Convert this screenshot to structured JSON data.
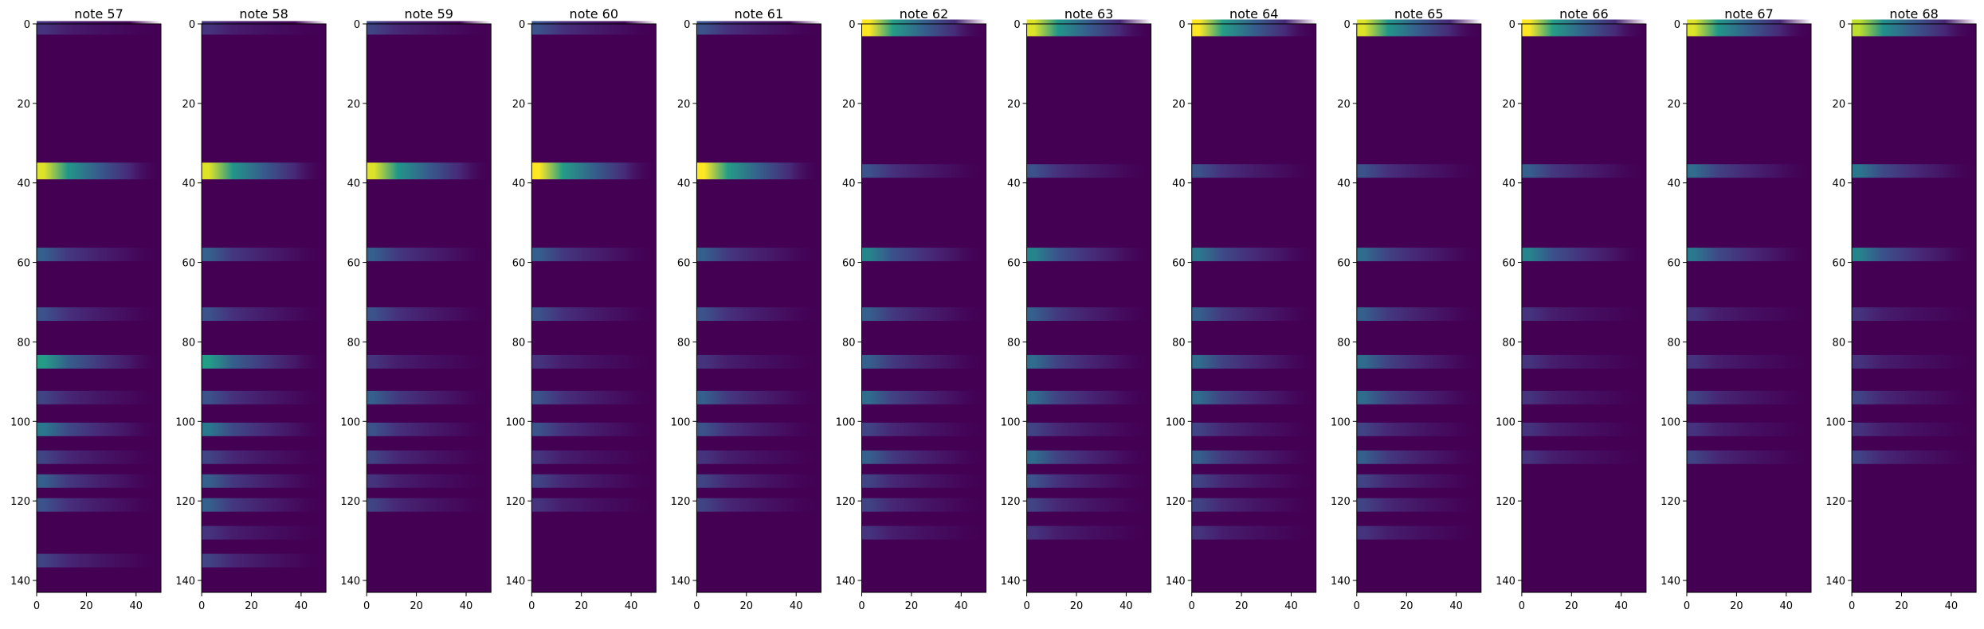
{
  "colors": {
    "background": "#440154",
    "colormap": [
      "#440154",
      "#472c7a",
      "#3b528b",
      "#2c728e",
      "#21918c",
      "#28ae80",
      "#5ec962",
      "#addc30",
      "#fde725"
    ]
  },
  "chart_data": [
    {
      "type": "heatmap",
      "title": "note 57",
      "xlim": [
        0,
        50
      ],
      "ylim": [
        143,
        0
      ],
      "xticks": [
        0,
        20,
        40
      ],
      "yticks": [
        0,
        20,
        40,
        60,
        80,
        100,
        120,
        140
      ],
      "bands": [
        {
          "y": 1,
          "v": 0.15
        },
        {
          "y": 37,
          "v": 0.95
        },
        {
          "y": 58,
          "v": 0.3
        },
        {
          "y": 73,
          "v": 0.25
        },
        {
          "y": 85,
          "v": 0.55
        },
        {
          "y": 94,
          "v": 0.2
        },
        {
          "y": 102,
          "v": 0.4
        },
        {
          "y": 109,
          "v": 0.2
        },
        {
          "y": 115,
          "v": 0.3
        },
        {
          "y": 121,
          "v": 0.25
        },
        {
          "y": 135,
          "v": 0.2
        }
      ]
    },
    {
      "type": "heatmap",
      "title": "note 58",
      "xlim": [
        0,
        50
      ],
      "ylim": [
        143,
        0
      ],
      "xticks": [
        0,
        20,
        40
      ],
      "yticks": [
        0,
        20,
        40,
        60,
        80,
        100,
        120,
        140
      ],
      "bands": [
        {
          "y": 1,
          "v": 0.15
        },
        {
          "y": 37,
          "v": 0.95
        },
        {
          "y": 58,
          "v": 0.3
        },
        {
          "y": 73,
          "v": 0.25
        },
        {
          "y": 85,
          "v": 0.55
        },
        {
          "y": 94,
          "v": 0.25
        },
        {
          "y": 102,
          "v": 0.4
        },
        {
          "y": 109,
          "v": 0.2
        },
        {
          "y": 115,
          "v": 0.3
        },
        {
          "y": 121,
          "v": 0.3
        },
        {
          "y": 128,
          "v": 0.15
        },
        {
          "y": 135,
          "v": 0.2
        }
      ]
    },
    {
      "type": "heatmap",
      "title": "note 59",
      "xlim": [
        0,
        50
      ],
      "ylim": [
        143,
        0
      ],
      "xticks": [
        0,
        20,
        40
      ],
      "yticks": [
        0,
        20,
        40,
        60,
        80,
        100,
        120,
        140
      ],
      "bands": [
        {
          "y": 1,
          "v": 0.2
        },
        {
          "y": 37,
          "v": 0.95
        },
        {
          "y": 58,
          "v": 0.3
        },
        {
          "y": 73,
          "v": 0.25
        },
        {
          "y": 85,
          "v": 0.15
        },
        {
          "y": 94,
          "v": 0.3
        },
        {
          "y": 102,
          "v": 0.25
        },
        {
          "y": 109,
          "v": 0.2
        },
        {
          "y": 115,
          "v": 0.15
        },
        {
          "y": 121,
          "v": 0.2
        }
      ]
    },
    {
      "type": "heatmap",
      "title": "note 60",
      "xlim": [
        0,
        50
      ],
      "ylim": [
        143,
        0
      ],
      "xticks": [
        0,
        20,
        40
      ],
      "yticks": [
        0,
        20,
        40,
        60,
        80,
        100,
        120,
        140
      ],
      "bands": [
        {
          "y": 1,
          "v": 0.25
        },
        {
          "y": 37,
          "v": 1.0
        },
        {
          "y": 58,
          "v": 0.3
        },
        {
          "y": 73,
          "v": 0.25
        },
        {
          "y": 85,
          "v": 0.15
        },
        {
          "y": 94,
          "v": 0.25
        },
        {
          "y": 102,
          "v": 0.25
        },
        {
          "y": 109,
          "v": 0.15
        },
        {
          "y": 115,
          "v": 0.2
        },
        {
          "y": 121,
          "v": 0.15
        }
      ]
    },
    {
      "type": "heatmap",
      "title": "note 61",
      "xlim": [
        0,
        50
      ],
      "ylim": [
        143,
        0
      ],
      "xticks": [
        0,
        20,
        40
      ],
      "yticks": [
        0,
        20,
        40,
        60,
        80,
        100,
        120,
        140
      ],
      "bands": [
        {
          "y": 1,
          "v": 0.25
        },
        {
          "y": 37,
          "v": 1.0
        },
        {
          "y": 58,
          "v": 0.3
        },
        {
          "y": 73,
          "v": 0.25
        },
        {
          "y": 85,
          "v": 0.15
        },
        {
          "y": 94,
          "v": 0.3
        },
        {
          "y": 102,
          "v": 0.25
        },
        {
          "y": 109,
          "v": 0.15
        },
        {
          "y": 115,
          "v": 0.2
        },
        {
          "y": 121,
          "v": 0.2
        }
      ]
    },
    {
      "type": "heatmap",
      "title": "note 62",
      "xlim": [
        0,
        50
      ],
      "ylim": [
        143,
        0
      ],
      "xticks": [
        0,
        20,
        40
      ],
      "yticks": [
        0,
        20,
        40,
        60,
        80,
        100,
        120,
        140
      ],
      "bands": [
        {
          "y": 1,
          "v": 1.0
        },
        {
          "y": 37,
          "v": 0.25
        },
        {
          "y": 58,
          "v": 0.45
        },
        {
          "y": 73,
          "v": 0.3
        },
        {
          "y": 85,
          "v": 0.3
        },
        {
          "y": 94,
          "v": 0.35
        },
        {
          "y": 102,
          "v": 0.2
        },
        {
          "y": 109,
          "v": 0.3
        },
        {
          "y": 115,
          "v": 0.2
        },
        {
          "y": 121,
          "v": 0.2
        },
        {
          "y": 128,
          "v": 0.15
        }
      ]
    },
    {
      "type": "heatmap",
      "title": "note 63",
      "xlim": [
        0,
        50
      ],
      "ylim": [
        143,
        0
      ],
      "xticks": [
        0,
        20,
        40
      ],
      "yticks": [
        0,
        20,
        40,
        60,
        80,
        100,
        120,
        140
      ],
      "bands": [
        {
          "y": 1,
          "v": 0.95
        },
        {
          "y": 37,
          "v": 0.25
        },
        {
          "y": 58,
          "v": 0.45
        },
        {
          "y": 73,
          "v": 0.3
        },
        {
          "y": 85,
          "v": 0.35
        },
        {
          "y": 94,
          "v": 0.35
        },
        {
          "y": 102,
          "v": 0.2
        },
        {
          "y": 109,
          "v": 0.35
        },
        {
          "y": 115,
          "v": 0.25
        },
        {
          "y": 121,
          "v": 0.2
        },
        {
          "y": 128,
          "v": 0.15
        }
      ]
    },
    {
      "type": "heatmap",
      "title": "note 64",
      "xlim": [
        0,
        50
      ],
      "ylim": [
        143,
        0
      ],
      "xticks": [
        0,
        20,
        40
      ],
      "yticks": [
        0,
        20,
        40,
        60,
        80,
        100,
        120,
        140
      ],
      "bands": [
        {
          "y": 1,
          "v": 1.0
        },
        {
          "y": 37,
          "v": 0.25
        },
        {
          "y": 58,
          "v": 0.4
        },
        {
          "y": 73,
          "v": 0.3
        },
        {
          "y": 85,
          "v": 0.35
        },
        {
          "y": 94,
          "v": 0.35
        },
        {
          "y": 102,
          "v": 0.2
        },
        {
          "y": 109,
          "v": 0.3
        },
        {
          "y": 115,
          "v": 0.2
        },
        {
          "y": 121,
          "v": 0.2
        },
        {
          "y": 128,
          "v": 0.15
        }
      ]
    },
    {
      "type": "heatmap",
      "title": "note 65",
      "xlim": [
        0,
        50
      ],
      "ylim": [
        143,
        0
      ],
      "xticks": [
        0,
        20,
        40
      ],
      "yticks": [
        0,
        20,
        40,
        60,
        80,
        100,
        120,
        140
      ],
      "bands": [
        {
          "y": 1,
          "v": 0.95
        },
        {
          "y": 37,
          "v": 0.25
        },
        {
          "y": 58,
          "v": 0.35
        },
        {
          "y": 73,
          "v": 0.3
        },
        {
          "y": 85,
          "v": 0.35
        },
        {
          "y": 94,
          "v": 0.35
        },
        {
          "y": 102,
          "v": 0.2
        },
        {
          "y": 109,
          "v": 0.3
        },
        {
          "y": 115,
          "v": 0.2
        },
        {
          "y": 121,
          "v": 0.2
        },
        {
          "y": 128,
          "v": 0.15
        }
      ]
    },
    {
      "type": "heatmap",
      "title": "note 66",
      "xlim": [
        0,
        50
      ],
      "ylim": [
        143,
        0
      ],
      "xticks": [
        0,
        20,
        40
      ],
      "yticks": [
        0,
        20,
        40,
        60,
        80,
        100,
        120,
        140
      ],
      "bands": [
        {
          "y": 1,
          "v": 1.0
        },
        {
          "y": 37,
          "v": 0.3
        },
        {
          "y": 58,
          "v": 0.45
        },
        {
          "y": 73,
          "v": 0.15
        },
        {
          "y": 85,
          "v": 0.15
        },
        {
          "y": 94,
          "v": 0.15
        },
        {
          "y": 102,
          "v": 0.15
        },
        {
          "y": 109,
          "v": 0.15
        }
      ]
    },
    {
      "type": "heatmap",
      "title": "note 67",
      "xlim": [
        0,
        50
      ],
      "ylim": [
        143,
        0
      ],
      "xticks": [
        0,
        20,
        40
      ],
      "yticks": [
        0,
        20,
        40,
        60,
        80,
        100,
        120,
        140
      ],
      "bands": [
        {
          "y": 1,
          "v": 0.95
        },
        {
          "y": 37,
          "v": 0.35
        },
        {
          "y": 58,
          "v": 0.4
        },
        {
          "y": 73,
          "v": 0.15
        },
        {
          "y": 85,
          "v": 0.15
        },
        {
          "y": 94,
          "v": 0.2
        },
        {
          "y": 102,
          "v": 0.15
        },
        {
          "y": 109,
          "v": 0.2
        }
      ]
    },
    {
      "type": "heatmap",
      "title": "note 68",
      "xlim": [
        0,
        50
      ],
      "ylim": [
        143,
        0
      ],
      "xticks": [
        0,
        20,
        40
      ],
      "yticks": [
        0,
        20,
        40,
        60,
        80,
        100,
        120,
        140
      ],
      "bands": [
        {
          "y": 1,
          "v": 0.9
        },
        {
          "y": 37,
          "v": 0.4
        },
        {
          "y": 58,
          "v": 0.45
        },
        {
          "y": 73,
          "v": 0.15
        },
        {
          "y": 85,
          "v": 0.15
        },
        {
          "y": 94,
          "v": 0.2
        },
        {
          "y": 102,
          "v": 0.15
        },
        {
          "y": 109,
          "v": 0.2
        }
      ]
    }
  ]
}
